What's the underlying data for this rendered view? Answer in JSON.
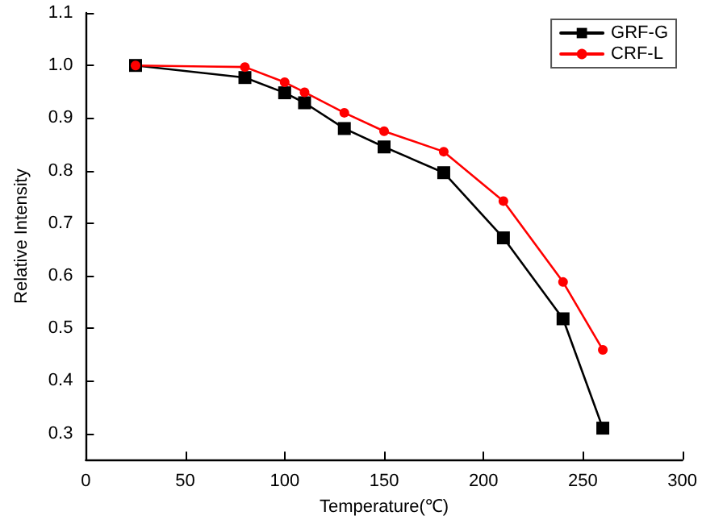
{
  "chart_data": {
    "type": "line",
    "xlabel": "Temperature(℃)",
    "ylabel": "Relative Intensity",
    "x": [
      25,
      80,
      100,
      110,
      130,
      150,
      180,
      210,
      240,
      260
    ],
    "series": [
      {
        "name": "GRF-G",
        "color": "#000000",
        "marker": "square",
        "values": [
          1.0,
          0.977,
          0.948,
          0.929,
          0.88,
          0.845,
          0.796,
          0.672,
          0.518,
          0.31
        ]
      },
      {
        "name": "CRF-L",
        "color": "#ff0000",
        "marker": "circle",
        "values": [
          1.0,
          0.997,
          0.968,
          0.949,
          0.91,
          0.875,
          0.836,
          0.742,
          0.588,
          0.459
        ]
      }
    ],
    "xlim": [
      0,
      300
    ],
    "xticks": [
      0,
      50,
      100,
      150,
      200,
      250,
      300
    ],
    "ylim": [
      0.25,
      1.1
    ],
    "yticks": [
      0.3,
      0.4,
      0.5,
      0.6,
      0.7,
      0.8,
      0.9,
      {
        "value": 1.0,
        "label": "1.0"
      },
      1.1
    ],
    "grid": false,
    "legend": "top right",
    "line_style": "solid"
  }
}
